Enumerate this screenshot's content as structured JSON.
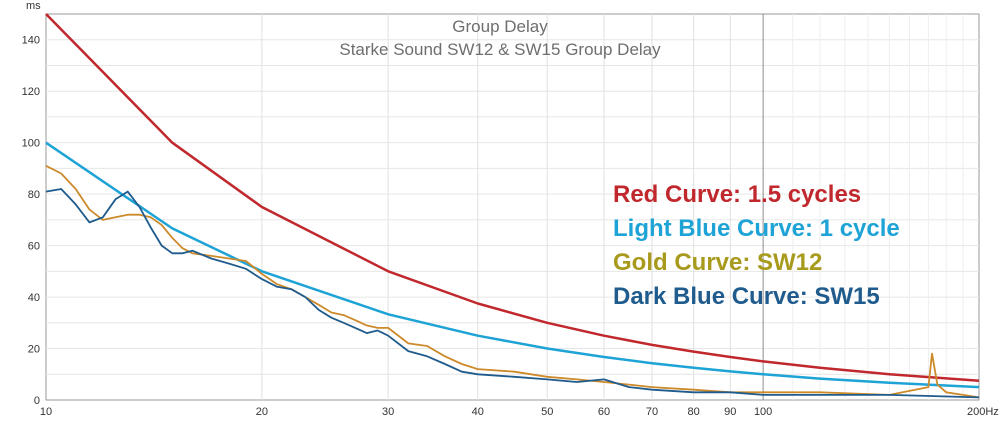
{
  "chart_data": {
    "type": "line",
    "title": "Group Delay",
    "subtitle": "Starke Sound SW12 & SW15 Group Delay",
    "ylabel": "ms",
    "xlabel": "",
    "x_scale": "log",
    "xlim": [
      10,
      200
    ],
    "ylim": [
      0,
      150
    ],
    "grid": true,
    "x_ticks": [
      10,
      20,
      30,
      40,
      50,
      60,
      70,
      80,
      90,
      100,
      200
    ],
    "x_tick_labels": [
      "10",
      "20",
      "30",
      "40",
      "50",
      "60",
      "70",
      "80",
      "90",
      "100",
      "200Hz"
    ],
    "y_ticks": [
      0,
      20,
      40,
      60,
      80,
      100,
      120,
      140
    ],
    "y_tick_labels": [
      "0",
      "20",
      "40",
      "60",
      "80",
      "100",
      "120",
      "140"
    ],
    "series": [
      {
        "color": "#c0282d",
        "x": [
          10,
          15,
          20,
          30,
          40,
          50,
          60,
          70,
          80,
          90,
          100,
          120,
          150,
          200
        ],
        "y": [
          150,
          100,
          75,
          50,
          37.5,
          30,
          25,
          21.4,
          18.8,
          16.7,
          15,
          12.5,
          10,
          7.5
        ]
      },
      {
        "color": "#1ea3d6",
        "x": [
          10,
          15,
          20,
          30,
          40,
          50,
          60,
          70,
          80,
          90,
          100,
          120,
          150,
          200
        ],
        "y": [
          100,
          66.7,
          50,
          33.3,
          25,
          20,
          16.7,
          14.3,
          12.5,
          11.1,
          10,
          8.3,
          6.7,
          5
        ]
      },
      {
        "color": "#cc8a2a",
        "x": [
          10,
          10.5,
          11,
          11.5,
          12,
          12.5,
          13,
          13.5,
          14,
          14.5,
          15,
          15.5,
          16,
          17,
          18,
          19,
          20,
          21,
          22,
          23,
          24,
          25,
          26,
          27,
          28,
          29,
          30,
          32,
          34,
          36,
          38,
          40,
          45,
          50,
          55,
          60,
          65,
          70,
          80,
          90,
          100,
          120,
          150,
          170,
          172,
          175,
          180,
          190,
          200
        ],
        "y": [
          91,
          88,
          82,
          74,
          70,
          71,
          72,
          72,
          71,
          68,
          63,
          59,
          57,
          56,
          55,
          54,
          49,
          45,
          43,
          40,
          37,
          34,
          33,
          31,
          29,
          28,
          28,
          22,
          21,
          17,
          14,
          12,
          11,
          9,
          8,
          7,
          6,
          5,
          4,
          3,
          3,
          3,
          2,
          5,
          18,
          6,
          3,
          2,
          1
        ]
      },
      {
        "color": "#1f5b8c",
        "x": [
          10,
          10.5,
          11,
          11.5,
          12,
          12.5,
          13,
          13.5,
          14,
          14.5,
          15,
          15.5,
          16,
          17,
          18,
          19,
          20,
          21,
          22,
          23,
          24,
          25,
          26,
          27,
          28,
          29,
          30,
          32,
          34,
          36,
          38,
          40,
          45,
          50,
          55,
          60,
          65,
          70,
          80,
          90,
          100,
          120,
          150,
          200
        ],
        "y": [
          81,
          82,
          76,
          69,
          71,
          78,
          81,
          75,
          67,
          60,
          57,
          57,
          58,
          55,
          53,
          51,
          47,
          44,
          43,
          40,
          35,
          32,
          30,
          28,
          26,
          27,
          25,
          19,
          17,
          14,
          11,
          10,
          9,
          8,
          7,
          8,
          5,
          4,
          3,
          3,
          2,
          2,
          2,
          1
        ]
      }
    ],
    "legend_position": "right",
    "legend_entries": [
      {
        "text": "Red Curve: 1.5 cycles",
        "color": "#c0282d"
      },
      {
        "text": "Light Blue Curve: 1 cycle",
        "color": "#1ea3d6"
      },
      {
        "text": "Gold Curve: SW12",
        "color": "#a89a1c"
      },
      {
        "text": "Dark Blue Curve: SW15",
        "color": "#1f5b8c"
      }
    ]
  }
}
